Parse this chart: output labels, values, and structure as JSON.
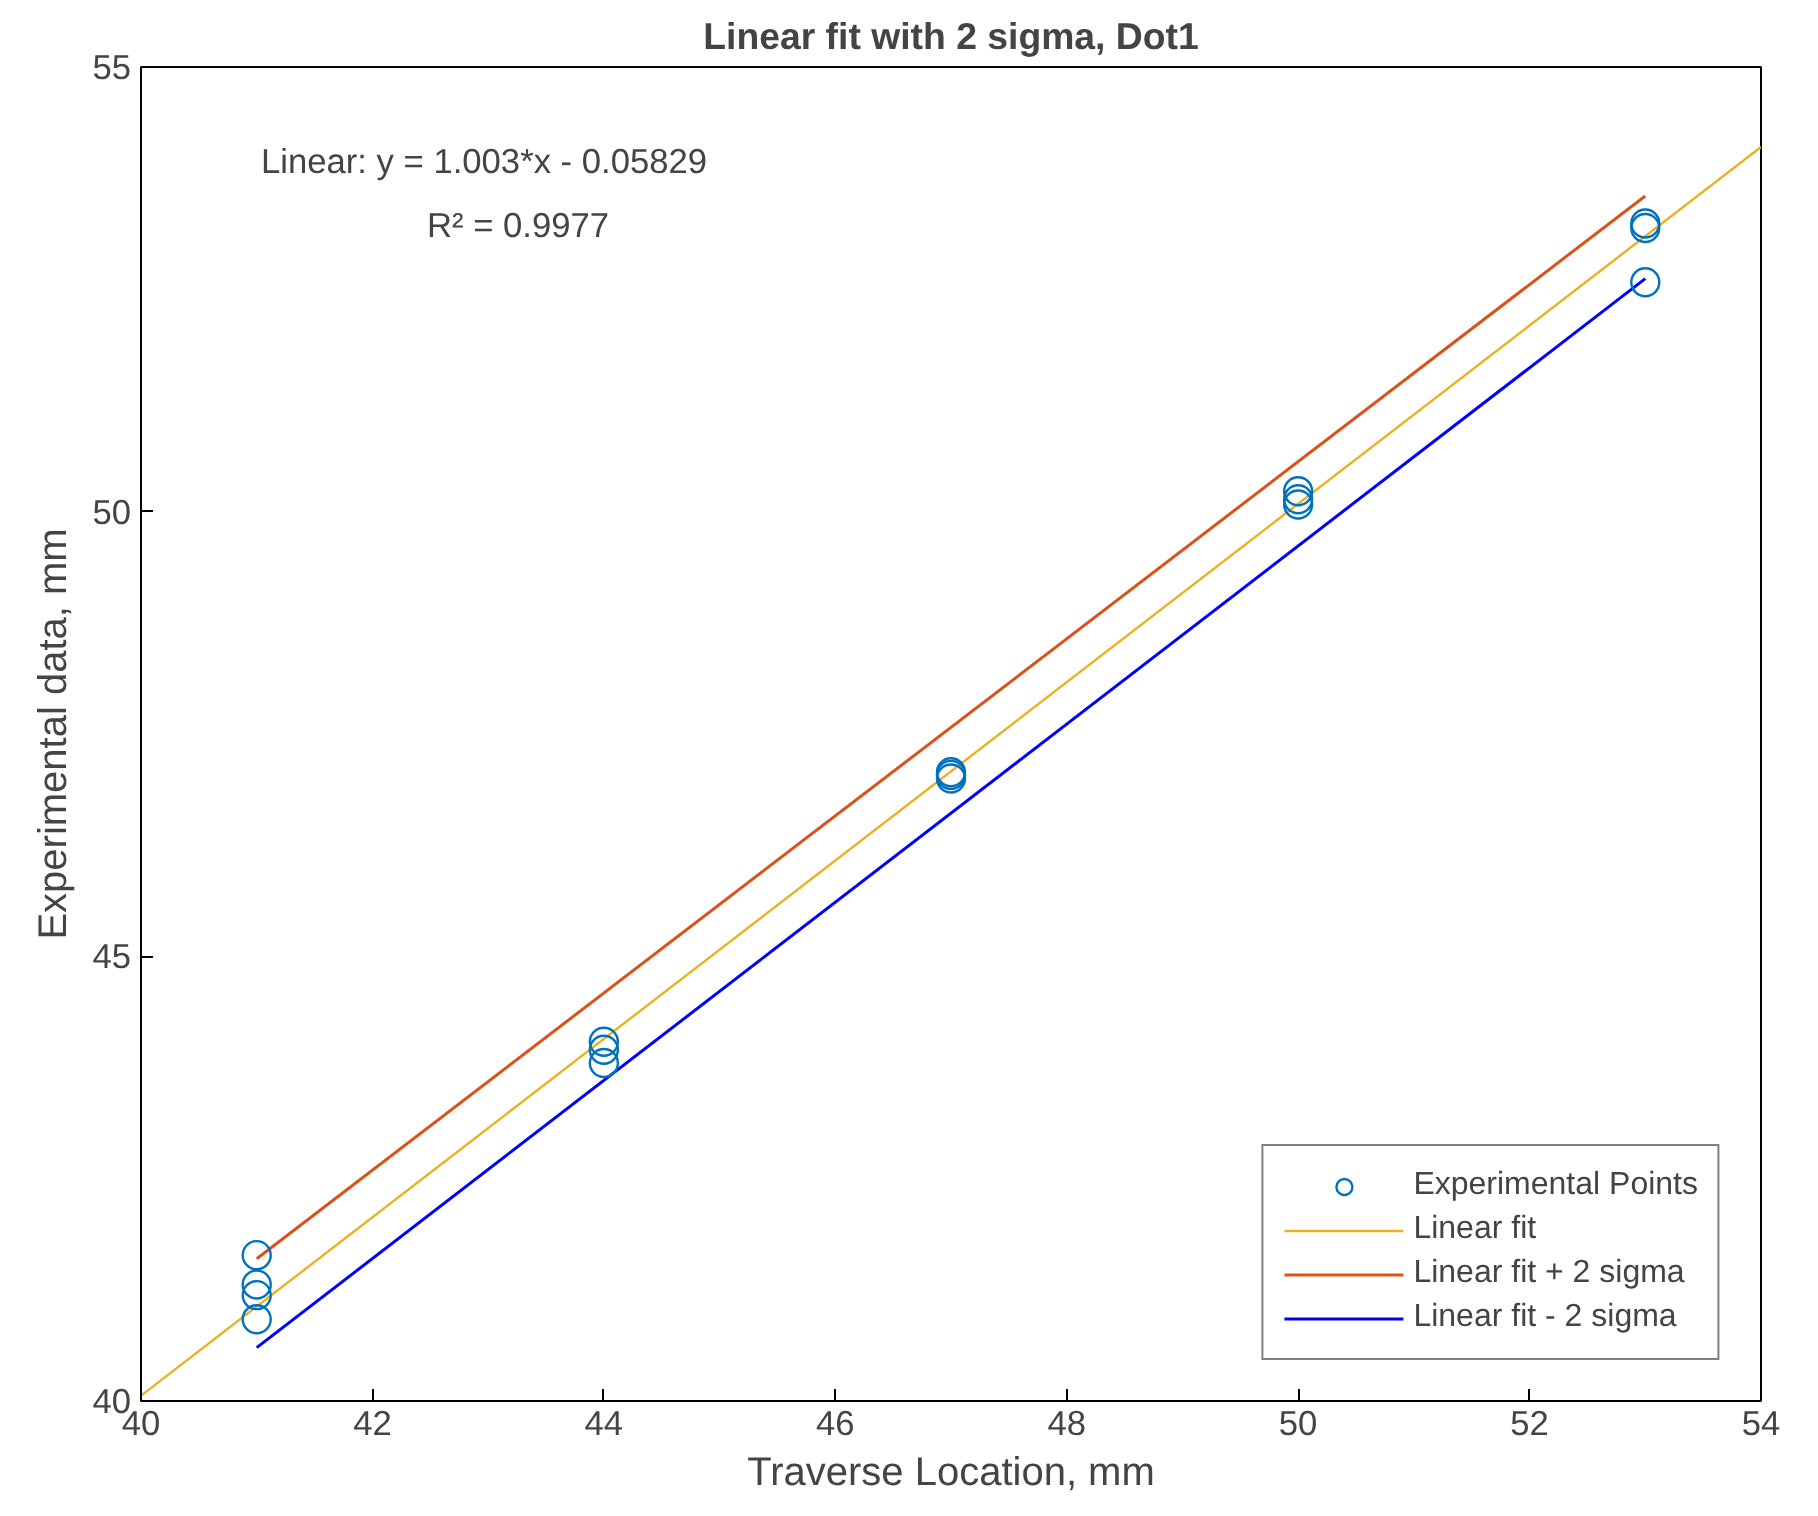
{
  "chart_data": {
    "type": "scatter",
    "title": "Linear fit with 2 sigma, Dot1",
    "xlabel": "Traverse Location, mm",
    "ylabel": "Experimental data, mm",
    "annotations": [
      "Linear:  y = 1.003*x - 0.05829",
      "R² = 0.9977"
    ],
    "xlim": [
      40,
      54
    ],
    "ylim": [
      40,
      55
    ],
    "xticks": [
      40,
      42,
      44,
      46,
      48,
      50,
      52,
      54
    ],
    "yticks": [
      40,
      45,
      50,
      55
    ],
    "grid": false,
    "legend": "bottom right",
    "series": [
      {
        "name": "Experimental Points",
        "marker": "circle",
        "color": "#0072bd",
        "x": [
          41,
          41,
          41,
          41,
          44,
          44,
          44,
          47,
          47,
          47,
          50,
          50,
          50,
          53,
          53,
          53
        ],
        "values": [
          41.64,
          41.31,
          41.19,
          40.92,
          44.04,
          43.95,
          43.8,
          47.07,
          47.04,
          47.0,
          50.23,
          50.14,
          50.08,
          53.24,
          53.19,
          52.58
        ]
      },
      {
        "name": "Linear fit",
        "type": "line",
        "color": "#edb120",
        "x": [
          40,
          54
        ],
        "values": [
          40.06,
          54.1
        ]
      },
      {
        "name": "Linear fit + 2 sigma",
        "type": "line",
        "color": "#d95319",
        "x": [
          41,
          53
        ],
        "values": [
          41.6,
          53.55
        ]
      },
      {
        "name": "Linear fit - 2 sigma",
        "type": "line",
        "color": "#0000ff",
        "x": [
          41,
          53
        ],
        "values": [
          40.6,
          52.62
        ]
      }
    ]
  }
}
